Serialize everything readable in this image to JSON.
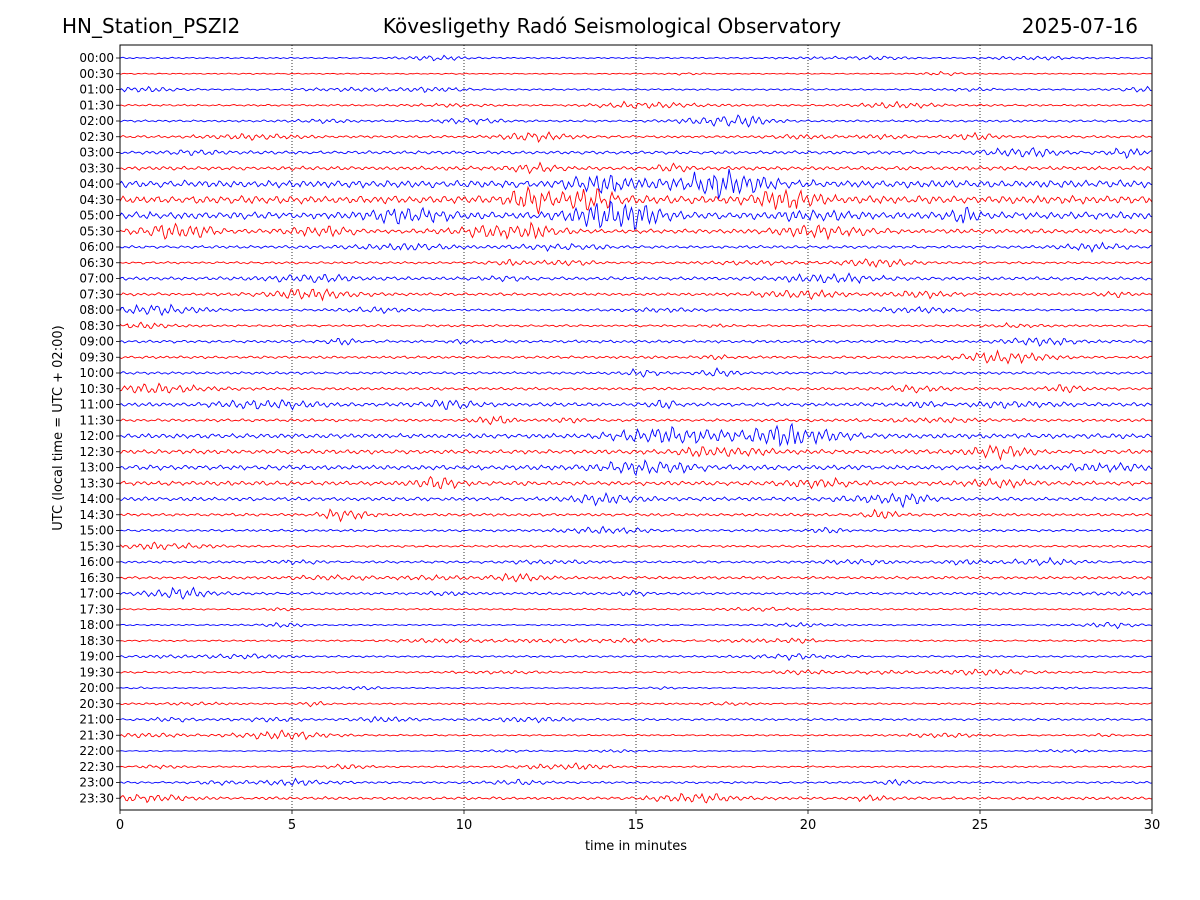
{
  "header": {
    "station": "HN_Station_PSZI2",
    "observatory": "Kövesligethy Radó Seismological Observatory",
    "date": "2025-07-16"
  },
  "chart_data": {
    "type": "line",
    "title": "Kövesligethy Radó Seismological Observatory",
    "xlabel": "time in minutes",
    "ylabel": "UTC (local time = UTC + 02:00)",
    "xlim": [
      0,
      30
    ],
    "x_ticks": [
      0,
      5,
      10,
      15,
      20,
      25,
      30
    ],
    "grid": "vertical dotted at 5-minute intervals",
    "colors": {
      "even_row": "#0000ff",
      "odd_row": "#ff0000",
      "frame": "#000000",
      "grid": "#000000"
    },
    "rows": [
      {
        "label": "00:00",
        "amplitude": 0.3
      },
      {
        "label": "00:30",
        "amplitude": 0.25
      },
      {
        "label": "01:00",
        "amplitude": 0.35
      },
      {
        "label": "01:30",
        "amplitude": 0.4
      },
      {
        "label": "02:00",
        "amplitude": 0.45
      },
      {
        "label": "02:30",
        "amplitude": 0.55
      },
      {
        "label": "03:00",
        "amplitude": 0.7
      },
      {
        "label": "03:30",
        "amplitude": 0.8
      },
      {
        "label": "04:00",
        "amplitude": 1.5
      },
      {
        "label": "04:30",
        "amplitude": 1.6
      },
      {
        "label": "05:00",
        "amplitude": 1.5
      },
      {
        "label": "05:30",
        "amplitude": 0.9
      },
      {
        "label": "06:00",
        "amplitude": 0.6
      },
      {
        "label": "06:30",
        "amplitude": 0.5
      },
      {
        "label": "07:00",
        "amplitude": 0.7
      },
      {
        "label": "07:30",
        "amplitude": 0.6
      },
      {
        "label": "08:00",
        "amplitude": 0.45
      },
      {
        "label": "08:30",
        "amplitude": 0.45
      },
      {
        "label": "09:00",
        "amplitude": 0.6
      },
      {
        "label": "09:30",
        "amplitude": 0.55
      },
      {
        "label": "10:00",
        "amplitude": 0.55
      },
      {
        "label": "10:30",
        "amplitude": 0.6
      },
      {
        "label": "11:00",
        "amplitude": 0.8
      },
      {
        "label": "11:30",
        "amplitude": 0.6
      },
      {
        "label": "12:00",
        "amplitude": 1.0
      },
      {
        "label": "12:30",
        "amplitude": 0.9
      },
      {
        "label": "13:00",
        "amplitude": 1.0
      },
      {
        "label": "13:30",
        "amplitude": 0.9
      },
      {
        "label": "14:00",
        "amplitude": 0.8
      },
      {
        "label": "14:30",
        "amplitude": 0.6
      },
      {
        "label": "15:00",
        "amplitude": 0.5
      },
      {
        "label": "15:30",
        "amplitude": 0.45
      },
      {
        "label": "16:00",
        "amplitude": 0.5
      },
      {
        "label": "16:30",
        "amplitude": 0.6
      },
      {
        "label": "17:00",
        "amplitude": 0.55
      },
      {
        "label": "17:30",
        "amplitude": 0.35
      },
      {
        "label": "18:00",
        "amplitude": 0.3
      },
      {
        "label": "18:30",
        "amplitude": 0.35
      },
      {
        "label": "19:00",
        "amplitude": 0.4
      },
      {
        "label": "19:30",
        "amplitude": 0.4
      },
      {
        "label": "20:00",
        "amplitude": 0.25
      },
      {
        "label": "20:30",
        "amplitude": 0.35
      },
      {
        "label": "21:00",
        "amplitude": 0.45
      },
      {
        "label": "21:30",
        "amplitude": 0.35
      },
      {
        "label": "22:00",
        "amplitude": 0.2
      },
      {
        "label": "22:30",
        "amplitude": 0.35
      },
      {
        "label": "23:00",
        "amplitude": 0.45
      },
      {
        "label": "23:30",
        "amplitude": 0.6
      }
    ]
  }
}
